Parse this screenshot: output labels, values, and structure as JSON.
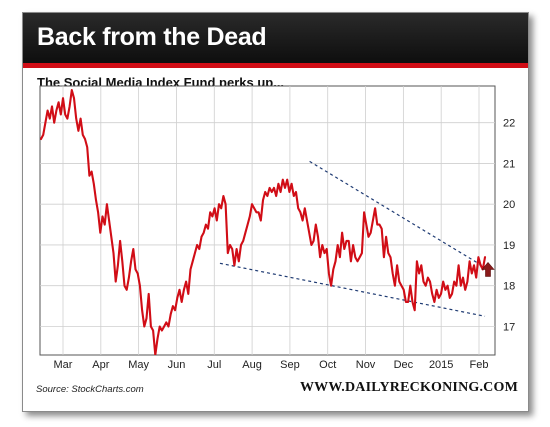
{
  "header": {
    "title": "Back from the Dead"
  },
  "footer": {
    "source": "Source: StockCharts.com",
    "website": "WWW.DAILYRECKONING.COM"
  },
  "colors": {
    "line": "#d10d16",
    "trendline": "#1f3b73",
    "header_bg": "#161616",
    "accent": "#d10d16"
  },
  "chart_data": {
    "type": "line",
    "title": "The Social Media Index Fund perks up...",
    "xlabel": "",
    "ylabel": "",
    "x_ticks": [
      "Mar",
      "Apr",
      "May",
      "Jun",
      "Jul",
      "Aug",
      "Sep",
      "Oct",
      "Nov",
      "Dec",
      "2015",
      "Feb"
    ],
    "y_ticks": [
      17,
      18,
      19,
      20,
      21,
      22
    ],
    "ylim": [
      16.3,
      22.9
    ],
    "grid": true,
    "series": [
      {
        "values": [
          21.6,
          21.7,
          22.0,
          22.3,
          22.1,
          22.4,
          22.0,
          22.3,
          22.5,
          22.2,
          22.6,
          22.2,
          22.1,
          22.4,
          22.8,
          22.6,
          22.1,
          21.8,
          22.1,
          21.7,
          21.6,
          21.4,
          20.7,
          20.8,
          20.5,
          20.1,
          19.8,
          19.3,
          19.7,
          19.5,
          20.0,
          19.6,
          19.2,
          18.8,
          18.1,
          18.5,
          19.1,
          18.6,
          18.0,
          17.9,
          18.2,
          18.6,
          18.9,
          18.4,
          18.3,
          18.0,
          17.4,
          17.0,
          17.2,
          17.8,
          17.0,
          16.9,
          16.3,
          16.7,
          17.0,
          16.9,
          17.0,
          17.1,
          17.0,
          17.3,
          17.5,
          17.4,
          17.7,
          17.9,
          17.6,
          17.9,
          18.1,
          17.8,
          18.4,
          18.6,
          18.8,
          19.0,
          18.9,
          19.2,
          19.3,
          19.5,
          19.4,
          19.8,
          19.7,
          19.9,
          19.6,
          20.0,
          19.9,
          20.2,
          20.0,
          18.8,
          19.0,
          18.9,
          18.5,
          18.9,
          18.6,
          19.0,
          19.1,
          19.3,
          19.5,
          19.7,
          20.0,
          19.9,
          19.8,
          19.8,
          19.6,
          20.1,
          20.3,
          20.2,
          20.4,
          20.3,
          20.4,
          20.2,
          20.5,
          20.3,
          20.6,
          20.4,
          20.6,
          20.3,
          20.5,
          20.2,
          20.3,
          19.9,
          19.8,
          19.6,
          19.9,
          19.6,
          19.3,
          19.0,
          19.1,
          19.5,
          19.2,
          18.7,
          19.0,
          18.8,
          18.9,
          18.3,
          18.0,
          18.4,
          18.6,
          19.0,
          18.7,
          19.3,
          18.9,
          19.1,
          19.1,
          18.6,
          19.0,
          18.7,
          18.6,
          18.7,
          18.8,
          19.8,
          19.5,
          19.2,
          19.3,
          19.6,
          19.9,
          19.5,
          19.5,
          19.4,
          18.7,
          19.2,
          18.8,
          18.7,
          18.3,
          18.0,
          18.5,
          18.1,
          18.0,
          17.9,
          17.6,
          17.6,
          18.0,
          17.6,
          17.4,
          18.6,
          18.3,
          18.5,
          18.1,
          18.0,
          18.2,
          18.1,
          17.8,
          17.6,
          17.9,
          17.7,
          17.8,
          18.1,
          17.9,
          18.0,
          17.7,
          17.8,
          18.1,
          18.0,
          18.5,
          18.0,
          18.2,
          17.9,
          18.1,
          18.6,
          18.3,
          18.5,
          18.2,
          18.7,
          18.5,
          18.4,
          18.7
        ]
      }
    ],
    "annotations": {
      "trendlines": [
        {
          "from": [
            0.605,
            21.05
          ],
          "to": [
            1.0,
            18.45
          ]
        },
        {
          "from": [
            0.403,
            18.55
          ],
          "to": [
            1.0,
            17.25
          ]
        }
      ],
      "marker": {
        "kind": "up-arrow",
        "value": 18.35
      }
    }
  }
}
